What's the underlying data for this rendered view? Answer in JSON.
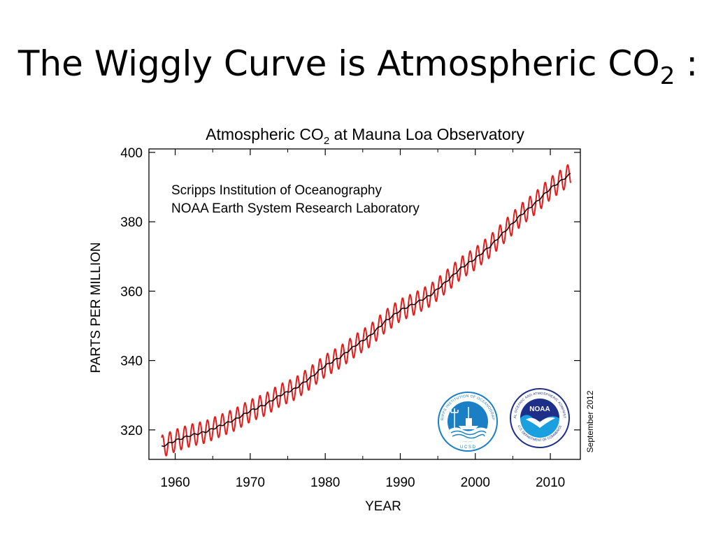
{
  "slide": {
    "title_main": "The Wiggly Curve is Atmospheric CO",
    "title_sub": "2",
    "title_tail": " :"
  },
  "chart_data": {
    "type": "line",
    "title_main": "Atmospheric CO",
    "title_sub": "2",
    "title_tail": " at Mauna Loa Observatory",
    "xlabel": "YEAR",
    "ylabel": "PARTS PER MILLION",
    "xlim": [
      1956.5,
      2014
    ],
    "ylim": [
      311.5,
      401
    ],
    "x_ticks": [
      1960,
      1970,
      1980,
      1990,
      2000,
      2010
    ],
    "y_ticks": [
      320,
      340,
      360,
      380,
      400
    ],
    "grid": false,
    "annotations": [
      "Scripps Institution of Oceanography",
      "NOAA Earth System Research Laboratory"
    ],
    "date_stamp": "September 2012",
    "logos": {
      "scripps": "SCRIPPS INSTITUTION OF OCEANOGRAPHY",
      "scripps_bottom": "U C S D",
      "noaa": "NOAA",
      "noaa_ring": "NATIONAL OCEANIC AND ATMOSPHERIC ADMINISTRATION",
      "noaa_bottom": "U.S. DEPARTMENT OF COMMERCE"
    },
    "seasonal_amplitude": 3.2,
    "series": [
      {
        "color": "#e21b1b",
        "style": "monthly-mean",
        "x": [
          1958.2,
          1960,
          1962,
          1964,
          1966,
          1968,
          1970,
          1972,
          1974,
          1976,
          1978,
          1980,
          1982,
          1984,
          1986,
          1988,
          1990,
          1992,
          1994,
          1996,
          1998,
          2000,
          2002,
          2004,
          2006,
          2008,
          2010,
          2012.7
        ],
        "y": [
          315.2,
          316.9,
          318.4,
          319.4,
          321.2,
          323.0,
          325.5,
          327.3,
          330.0,
          331.9,
          335.0,
          338.5,
          341.0,
          344.3,
          347.2,
          351.3,
          354.5,
          356.5,
          358.8,
          362.5,
          366.5,
          369.4,
          373.0,
          377.4,
          381.8,
          385.4,
          389.6,
          393.8
        ]
      },
      {
        "color": "#000000",
        "style": "trend",
        "x": [
          1958.2,
          1960,
          1962,
          1964,
          1966,
          1968,
          1970,
          1972,
          1974,
          1976,
          1978,
          1980,
          1982,
          1984,
          1986,
          1988,
          1990,
          1992,
          1994,
          1996,
          1998,
          2000,
          2002,
          2004,
          2006,
          2008,
          2010,
          2012.7
        ],
        "y": [
          315.2,
          316.9,
          318.4,
          319.4,
          321.2,
          323.0,
          325.5,
          327.3,
          330.0,
          331.9,
          335.0,
          338.5,
          341.0,
          344.3,
          347.2,
          351.3,
          354.5,
          356.5,
          358.8,
          362.5,
          366.5,
          369.4,
          373.0,
          377.4,
          381.8,
          385.4,
          389.6,
          393.8
        ]
      }
    ]
  }
}
